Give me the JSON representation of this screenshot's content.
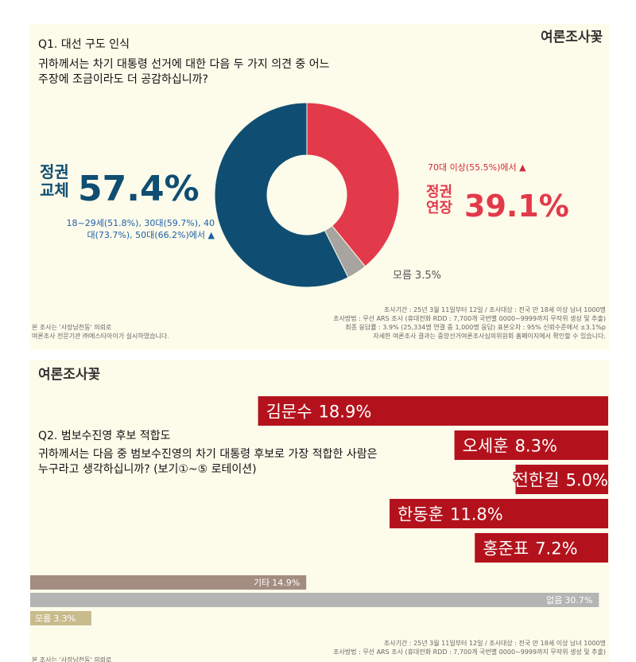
{
  "logo": "여론조사꽃",
  "chart_data": [
    {
      "type": "donut",
      "title": "Q1. 대선 구도 인식",
      "subtitle": "귀하께서는 차기 대통령 선거에 대한 다음 두 가지 의견 중 어느 주장에 조금이라도 더 공감하십니까?",
      "categories": [
        "정권 연장",
        "모름",
        "정권 교체"
      ],
      "values": [
        39.1,
        3.5,
        57.4
      ],
      "value_labels": [
        "39.1%",
        "3.5%",
        "57.4%"
      ],
      "colors": [
        "#e23a4b",
        "#a8a4a0",
        "#0f4e72"
      ],
      "annotations": [
        "70대 이상(55.5%)에서 ▲",
        "18~29세(51.8%), 30대(59.7%), 40대(73.7%), 50대(66.2%)에서 ▲"
      ],
      "notes_left": [
        "본 조사는 '사장남천동' 의뢰로",
        "여론조사 전문기관 ㈜에스티아이가 실시하였습니다."
      ],
      "notes_right": [
        "조사기간 : 25년 3월 11일부터 12일 / 조사대상 : 전국 만 18세 이상 남녀 1000명",
        "조사방법 : 무선 ARS 조사 (휴대전화 RDD : 7,700개 국번별 0000~9999까지 무작위 생성 및 추출)",
        "최종 응답률 : 3.9% (25,334명 연결 중 1,000명 응답) 표본오차 : 95% 신뢰수준에서 ±3.1%p",
        "자세한 여론조사 결과는 중앙선거여론조사심의위원회 홈페이지에서 확인할 수 있습니다."
      ]
    },
    {
      "type": "hbar",
      "title": "Q2. 범보수진영 후보 적합도",
      "subtitle": "귀하께서는 다음 중 범보수진영의 차기 대통령 후보로 가장 적합한 사람은 누구라고 생각하십니까? (보기①~⑤ 로테이션)",
      "categories": [
        "김문수",
        "오세훈",
        "전한길",
        "한동훈",
        "홍준표",
        "기타",
        "없음",
        "모름"
      ],
      "values": [
        18.9,
        8.3,
        5.0,
        11.8,
        7.2,
        14.9,
        30.7,
        3.3
      ],
      "value_labels": [
        "18.9%",
        "8.3%",
        "5.0%",
        "11.8%",
        "7.2%",
        "14.9%",
        "30.7%",
        "3.3%"
      ],
      "colors": [
        "#b3121c",
        "#b3121c",
        "#b3121c",
        "#b3121c",
        "#b3121c",
        "#a38d80",
        "#b4b4b4",
        "#c8bb8c"
      ],
      "xlim": [
        0,
        31.2
      ],
      "notes_left": [
        "본 조사는 '사장남천동' 의뢰로"
      ],
      "notes_right": [
        "조사기간 : 25년 3월 11일부터 12일 / 조사대상 : 전국 만 18세 이상 남녀 1000명",
        "조사방법 : 무선 ARS 조사 (휴대전화 RDD : 7,700개 국번별 0000~9999까지 무작위 생성 및 추출)"
      ]
    }
  ]
}
